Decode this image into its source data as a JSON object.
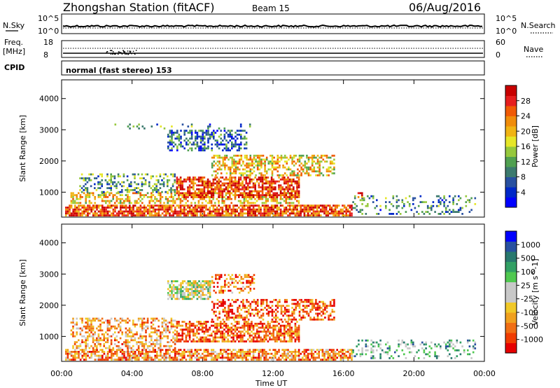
{
  "header": {
    "station": "Zhongshan Station (fitACF)",
    "beam": "Beam 15",
    "date": "06/Aug/2016"
  },
  "small_panels": {
    "nsky_label": "N.Sky",
    "nsky_ticks": [
      "10^5",
      "10^0"
    ],
    "nsearch_label": "N.Search",
    "nsearch_ticks": [
      "10^5",
      "10^0"
    ],
    "freq_label": "Freq.",
    "freq_unit": "[MHz]",
    "freq_ticks": [
      "18",
      "8"
    ],
    "nave_label": "Nave",
    "nave_ticks": [
      "60",
      "0"
    ],
    "cpid_label": "CPID",
    "cpid_value": "normal (fast stereo) 153"
  },
  "x_axis": {
    "label": "Time UT",
    "ticks": [
      "00:00",
      "04:00",
      "08:00",
      "12:00",
      "16:00",
      "20:00",
      "00:00"
    ]
  },
  "chart_data": [
    {
      "type": "heatmap",
      "panel": "power",
      "ylabel": "Slant Range [km]",
      "yticks": [
        "4000",
        "3000",
        "2000",
        "1000"
      ],
      "ylim": [
        200,
        4600
      ],
      "xlim_hours": [
        0,
        24
      ],
      "colorbar": {
        "label": "Power [dB]",
        "ticks": [
          "28",
          "24",
          "20",
          "16",
          "12",
          "8",
          "4"
        ],
        "colors": [
          "#0000ff",
          "#0028c8",
          "#2850a0",
          "#3c7a6e",
          "#50a050",
          "#96c83c",
          "#e6e628",
          "#f0b414",
          "#f08c0a",
          "#f05a05",
          "#e61e1e",
          "#c80000"
        ]
      },
      "regions": [
        {
          "t0": 0.2,
          "t1": 16.5,
          "r0": 250,
          "r1": 600,
          "level": 0.82,
          "density": 0.8
        },
        {
          "t0": 0.5,
          "t1": 13.5,
          "r0": 600,
          "r1": 1000,
          "level": 0.6,
          "density": 0.5
        },
        {
          "t0": 1.0,
          "t1": 6.5,
          "r0": 1000,
          "r1": 1600,
          "level": 0.35,
          "density": 0.35
        },
        {
          "t0": 6.5,
          "t1": 13.5,
          "r0": 800,
          "r1": 1500,
          "level": 0.85,
          "density": 0.7
        },
        {
          "t0": 8.5,
          "t1": 15.5,
          "r0": 1500,
          "r1": 2200,
          "level": 0.6,
          "density": 0.5
        },
        {
          "t0": 6.0,
          "t1": 10.5,
          "r0": 2300,
          "r1": 3000,
          "level": 0.25,
          "density": 0.45
        },
        {
          "t0": 3.0,
          "t1": 11.0,
          "r0": 3000,
          "r1": 3200,
          "level": 0.3,
          "density": 0.12
        },
        {
          "t0": 16.5,
          "t1": 23.5,
          "r0": 250,
          "r1": 900,
          "level": 0.3,
          "density": 0.25
        },
        {
          "t0": 16.8,
          "t1": 17.1,
          "r0": 800,
          "r1": 1000,
          "level": 0.85,
          "density": 0.8
        }
      ]
    },
    {
      "type": "heatmap",
      "panel": "velocity",
      "ylabel": "Slant Range [km]",
      "yticks": [
        "4000",
        "3000",
        "2000",
        "1000"
      ],
      "ylim": [
        200,
        4600
      ],
      "xlim_hours": [
        0,
        24
      ],
      "colorbar": {
        "label": "Velocity [m s^-1]",
        "ticks": [
          "1000",
          "500",
          "100",
          "25",
          "-25",
          "-100",
          "-500",
          "-1000"
        ],
        "colors": [
          "#e60000",
          "#f03c00",
          "#f06e14",
          "#f0a01e",
          "#f0c828",
          "#c8c8c8",
          "#c8c8c8",
          "#50c850",
          "#32a064",
          "#28786e",
          "#2850a0",
          "#0000ff"
        ]
      },
      "regions": [
        {
          "t0": 0.2,
          "t1": 16.5,
          "r0": 250,
          "r1": 600,
          "level": 0.25,
          "density": 0.7
        },
        {
          "t0": 0.5,
          "t1": 6.5,
          "r0": 600,
          "r1": 1600,
          "level": 0.3,
          "density": 0.45
        },
        {
          "t0": 6.5,
          "t1": 13.5,
          "r0": 800,
          "r1": 1500,
          "level": 0.18,
          "density": 0.65
        },
        {
          "t0": 8.5,
          "t1": 15.5,
          "r0": 1500,
          "r1": 2200,
          "level": 0.15,
          "density": 0.5
        },
        {
          "t0": 6.0,
          "t1": 8.5,
          "r0": 2200,
          "r1": 2800,
          "level": 0.5,
          "density": 0.7
        },
        {
          "t0": 8.5,
          "t1": 11.0,
          "r0": 2400,
          "r1": 3000,
          "level": 0.2,
          "density": 0.4
        },
        {
          "t0": 16.5,
          "t1": 23.5,
          "r0": 250,
          "r1": 900,
          "level": 0.65,
          "density": 0.25
        }
      ]
    }
  ]
}
